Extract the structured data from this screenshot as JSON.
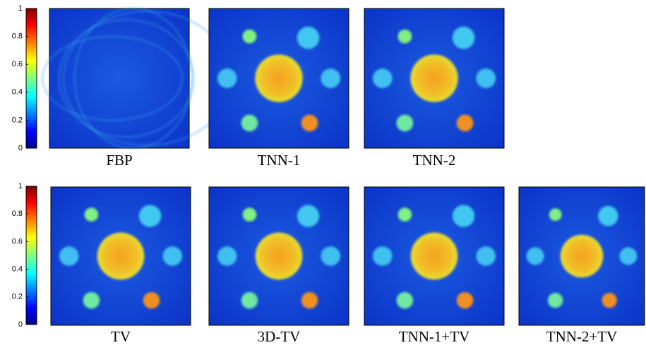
{
  "rows": [
    {
      "colorbar": {
        "lim": [
          0,
          1
        ],
        "ticks": [
          0,
          0.2,
          0.4,
          0.6,
          0.8,
          1
        ]
      },
      "panels": [
        {
          "label": "FBP"
        },
        {
          "label": "TNN-1"
        },
        {
          "label": "TNN-2"
        }
      ]
    },
    {
      "colorbar": {
        "lim": [
          0,
          1
        ],
        "ticks": [
          0,
          0.2,
          0.4,
          0.6,
          0.8,
          1
        ]
      },
      "panels": [
        {
          "label": "TV"
        },
        {
          "label": "3D-TV"
        },
        {
          "label": "TNN-1+TV"
        },
        {
          "label": "TNN-2+TV"
        }
      ]
    }
  ]
}
